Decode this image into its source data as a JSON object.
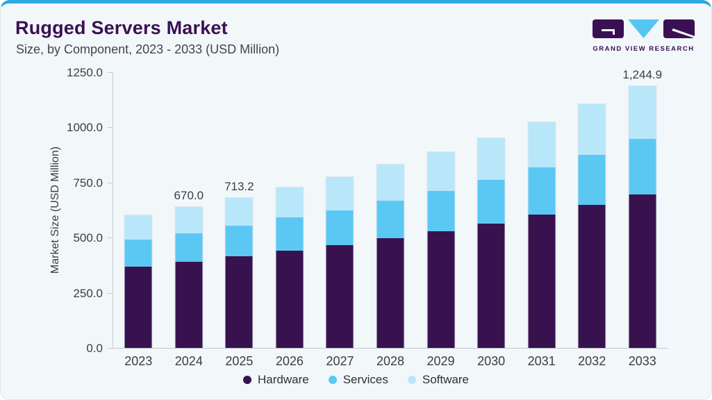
{
  "header": {
    "title": "Rugged Servers Market",
    "subtitle": "Size, by Component, 2023 - 2033 (USD Million)",
    "logo_text": "GRAND VIEW RESEARCH"
  },
  "colors": {
    "accent_top_border": "#29abe2",
    "card_background": "#f2f7fa",
    "title_text": "#3a1053",
    "body_text": "#3b3c44",
    "axis_line": "#c5cad2",
    "hardware": "#38124e",
    "services": "#5bc8f4",
    "software": "#b9e7fa"
  },
  "chart_data": {
    "type": "bar",
    "stacked": true,
    "title": "Rugged Servers Market Size, by Component, 2023 - 2033 (USD Million)",
    "categories": [
      "2023",
      "2024",
      "2025",
      "2026",
      "2027",
      "2028",
      "2029",
      "2030",
      "2031",
      "2032",
      "2033"
    ],
    "series": [
      {
        "name": "Hardware",
        "color": "#38124e",
        "values": [
          386.0,
          407.8,
          436.4,
          462.7,
          488.1,
          521.0,
          553.9,
          592.1,
          632.9,
          679.9,
          729.3
        ]
      },
      {
        "name": "Services",
        "color": "#5bc8f4",
        "values": [
          129.4,
          138.2,
          145.8,
          157.0,
          166.5,
          179.6,
          192.8,
          207.3,
          223.7,
          239.3,
          263.3
        ]
      },
      {
        "name": "Software",
        "color": "#b9e7fa",
        "values": [
          116.2,
          124.0,
          131.0,
          142.3,
          158.0,
          169.3,
          183.4,
          197.4,
          214.9,
          237.9,
          252.3
        ]
      }
    ],
    "bar_value_labels": {
      "2024": "670.0",
      "2025": "713.2",
      "2033": "1,244.9"
    },
    "xlabel": "",
    "ylabel": "Market Size (USD Million)",
    "ylim": [
      0,
      1250
    ],
    "yticks": [
      "0.0",
      "250.0",
      "500.0",
      "750.0",
      "1000.0",
      "1250.0"
    ],
    "grid": false,
    "legend": [
      "Hardware",
      "Services",
      "Software"
    ],
    "legend_position": "bottom"
  }
}
